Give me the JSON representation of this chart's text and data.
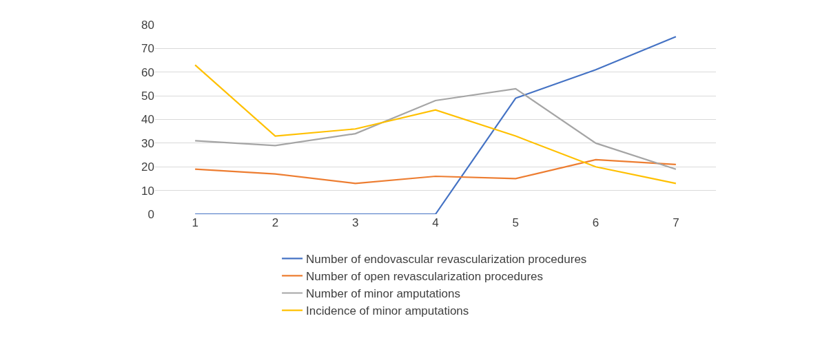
{
  "chart_data": {
    "type": "line",
    "categories": [
      "1",
      "2",
      "3",
      "4",
      "5",
      "6",
      "7"
    ],
    "series": [
      {
        "name": "Number of endovascular revascularization procedures",
        "color": "#4472c4",
        "values": [
          0,
          0,
          0,
          0,
          49,
          61,
          75
        ]
      },
      {
        "name": "Number of open revascularization procedures",
        "color": "#ed7d31",
        "values": [
          19,
          17,
          13,
          16,
          15,
          23,
          21
        ]
      },
      {
        "name": "Number of minor amputations",
        "color": "#a5a5a5",
        "values": [
          31,
          29,
          34,
          48,
          53,
          30,
          19
        ]
      },
      {
        "name": "Incidence of minor amputations",
        "color": "#ffc000",
        "values": [
          63,
          33,
          36,
          44,
          33,
          20,
          13
        ]
      }
    ],
    "ylim": [
      0,
      80
    ],
    "yticks": [
      0,
      10,
      20,
      30,
      40,
      50,
      60,
      70,
      80
    ],
    "grid": "y",
    "legend": "bottom",
    "marker": "none",
    "line_style": "solid"
  }
}
